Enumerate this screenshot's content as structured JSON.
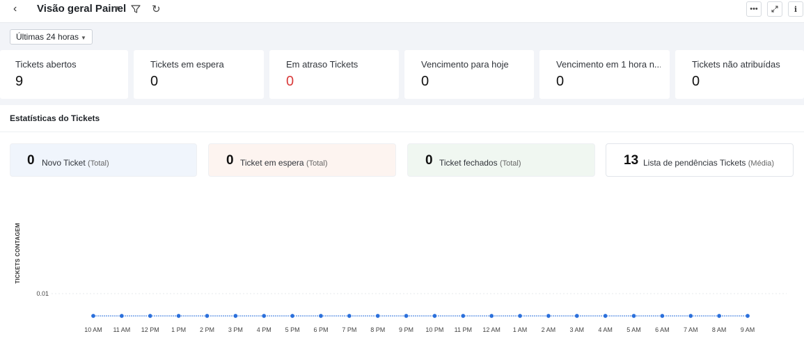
{
  "header": {
    "back_icon": "chevron-left-icon",
    "title": "Visão geral Painel",
    "filter_icon": "filter-icon",
    "refresh_icon": "refresh-icon",
    "more_icon": "more-horizontal-icon",
    "expand_icon": "expand-icon",
    "info_icon": "info-icon"
  },
  "filter": {
    "range_label": "Últimas 24 horas"
  },
  "kpis": [
    {
      "label": "Tickets abertos",
      "value": "9"
    },
    {
      "label": "Tickets em espera",
      "value": "0"
    },
    {
      "label": "Em atraso Tickets",
      "value": "0",
      "status_color": "#d93b3b"
    },
    {
      "label": "Vencimento para hoje",
      "value": "0"
    },
    {
      "label": "Vencimento em 1 hora n...",
      "value": "0"
    },
    {
      "label": "Tickets não atribuídas",
      "value": "0"
    }
  ],
  "stats_section": {
    "title": "Estatísticas do Tickets",
    "cards": [
      {
        "value": "0",
        "label": "Novo Ticket",
        "suffix": "(Total)",
        "bg": "#f0f5fc"
      },
      {
        "value": "0",
        "label": "Ticket em espera",
        "suffix": "(Total)",
        "bg": "#fdf4f0"
      },
      {
        "value": "0",
        "label": "Ticket fechados",
        "suffix": "(Total)",
        "bg": "#f0f7f1"
      },
      {
        "value": "13",
        "label": "Lista de pendências Tickets",
        "suffix": "(Média)",
        "bg": "#ffffff"
      }
    ]
  },
  "chart_data": {
    "type": "line",
    "ylabel": "TICKETS CONTAGEM",
    "y_ticks": [
      "0.01"
    ],
    "x": [
      "10 AM",
      "11 AM",
      "12 PM",
      "1 PM",
      "2 PM",
      "3 PM",
      "4 PM",
      "5 PM",
      "6 PM",
      "7 PM",
      "8 PM",
      "9 PM",
      "10 PM",
      "11 PM",
      "12 AM",
      "1 AM",
      "2 AM",
      "3 AM",
      "4 AM",
      "5 AM",
      "6 AM",
      "7 AM",
      "8 AM",
      "9 AM"
    ],
    "series": [
      {
        "values": [
          0,
          0,
          0,
          0,
          0,
          0,
          0,
          0,
          0,
          0,
          0,
          0,
          0,
          0,
          0,
          0,
          0,
          0,
          0,
          0,
          0,
          0,
          0,
          0
        ],
        "color": "#2a6fdb"
      }
    ],
    "ylim": [
      0,
      0.01
    ],
    "grid": true
  }
}
